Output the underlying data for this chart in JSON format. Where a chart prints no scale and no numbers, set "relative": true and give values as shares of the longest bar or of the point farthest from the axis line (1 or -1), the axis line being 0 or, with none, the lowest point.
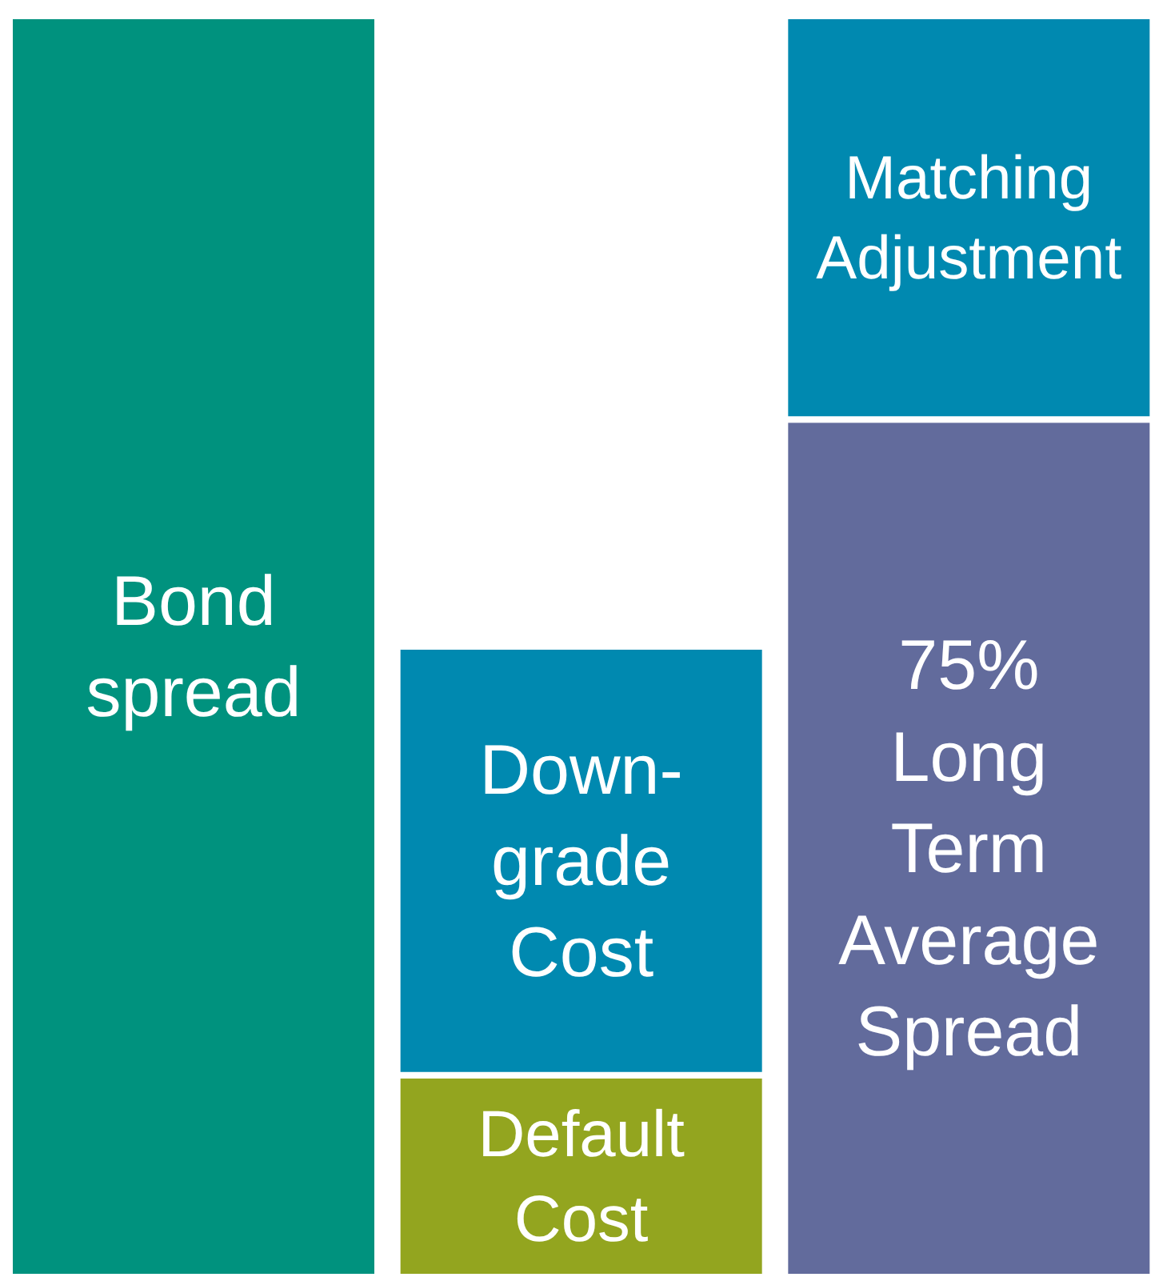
{
  "chart_data": {
    "type": "bar",
    "stacked": true,
    "relative": true,
    "categories": [
      null,
      null,
      null
    ],
    "series": [
      {
        "name": "Bond spread",
        "color": "#00927e",
        "values": [
          1,
          null,
          null
        ]
      },
      {
        "name": "Default Cost",
        "color": "#93a51f",
        "values": [
          null,
          0.16,
          null
        ]
      },
      {
        "name": "75% Long Term Average Spread",
        "color": "#626b9c",
        "values": [
          null,
          null,
          0.68
        ]
      },
      {
        "name": "Down-grade Cost",
        "color": "#0089b0",
        "values": [
          null,
          0.34,
          null
        ]
      },
      {
        "name": "Matching Adjustment",
        "color": "#0089b0",
        "values": [
          null,
          null,
          0.32
        ]
      }
    ]
  }
}
